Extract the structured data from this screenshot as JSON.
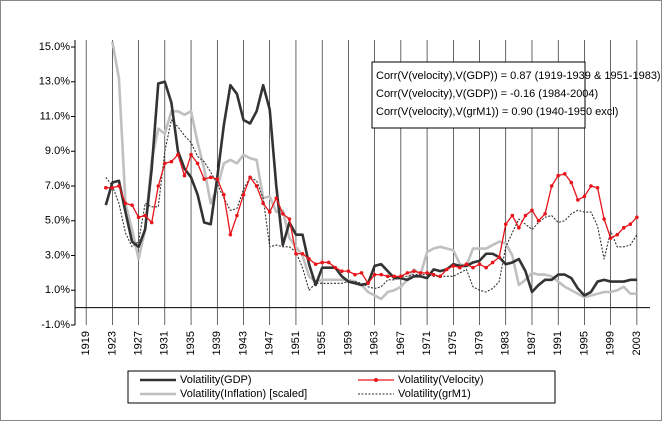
{
  "chart_data": {
    "type": "line",
    "annotations": [
      "Corr(V(velocity),V(GDP)) = 0.87 (1919-1939 & 1951-1983)",
      "Corr(V(velocity),V(GDP)) = -0.16 (1984-2004)",
      "Corr(V(velocity),V(grM1)) = 0.90 (1940-1950 excl)"
    ],
    "x": [
      1922,
      1923,
      1924,
      1925,
      1926,
      1927,
      1928,
      1929,
      1930,
      1931,
      1932,
      1933,
      1934,
      1935,
      1936,
      1937,
      1938,
      1939,
      1940,
      1941,
      1942,
      1943,
      1944,
      1945,
      1946,
      1947,
      1948,
      1949,
      1950,
      1951,
      1952,
      1953,
      1954,
      1955,
      1956,
      1957,
      1958,
      1959,
      1960,
      1961,
      1962,
      1963,
      1964,
      1965,
      1966,
      1967,
      1968,
      1969,
      1970,
      1971,
      1972,
      1973,
      1974,
      1975,
      1976,
      1977,
      1978,
      1979,
      1980,
      1981,
      1982,
      1983,
      1984,
      1985,
      1986,
      1987,
      1988,
      1989,
      1990,
      1991,
      1992,
      1993,
      1994,
      1995,
      1996,
      1997,
      1998,
      1999,
      2000,
      2001,
      2002,
      2003
    ],
    "series": [
      {
        "name": "Volatility(GDP)",
        "color": "#333333",
        "style": "thick",
        "values": [
          5.9,
          7.2,
          7.3,
          5.5,
          3.8,
          3.5,
          4.5,
          8,
          12.9,
          13,
          11.8,
          9,
          8,
          7.5,
          6.5,
          4.9,
          4.8,
          7.5,
          10.5,
          12.8,
          12.3,
          10.8,
          10.6,
          11.3,
          12.8,
          11.4,
          7,
          3.6,
          4.9,
          4.2,
          4.2,
          2.5,
          1.3,
          2.3,
          2.3,
          2.3,
          1.8,
          1.5,
          1.4,
          1.3,
          1.4,
          2.4,
          2.5,
          2.1,
          1.7,
          1.7,
          1.6,
          1.8,
          1.8,
          1.7,
          2.2,
          2.1,
          2.2,
          2.5,
          2.4,
          2.4,
          2.6,
          2.7,
          3.1,
          3.1,
          2.9,
          2.5,
          2.6,
          2.8,
          2.1,
          0.9,
          1.3,
          1.6,
          1.6,
          1.9,
          1.9,
          1.7,
          1.1,
          0.7,
          0.9,
          1.5,
          1.6,
          1.5,
          1.5,
          1.5,
          1.6,
          1.6
        ]
      },
      {
        "name": "Volatility(Velocity)",
        "color": "#e8141a",
        "style": "marker",
        "values": [
          6.9,
          6.9,
          7,
          6,
          5.9,
          5.2,
          5.3,
          4.9,
          7,
          8.3,
          8.4,
          8.8,
          7.6,
          8.8,
          8.3,
          7.4,
          7.5,
          7.4,
          6.5,
          4.2,
          5.3,
          6.5,
          7.5,
          7,
          6,
          5.5,
          6.3,
          5.4,
          5.1,
          3.1,
          3.1,
          2.8,
          2.5,
          2.6,
          2.6,
          2.3,
          2.1,
          2.1,
          1.9,
          2,
          1.4,
          1.9,
          1.9,
          1.8,
          1.8,
          1.8,
          2,
          2.1,
          2,
          2,
          1.9,
          1.8,
          2.2,
          2.4,
          2.3,
          2.5,
          2.3,
          2.5,
          2.3,
          2.6,
          2.9,
          4.8,
          5.3,
          4.6,
          5.3,
          5.6,
          5,
          5.4,
          7,
          7.6,
          7.7,
          7.2,
          6.2,
          6.4,
          7,
          6.9,
          5.1,
          4,
          4.2,
          4.6,
          4.8,
          5.2
        ]
      },
      {
        "name": "Volatility(Inflation) [scaled]",
        "color": "#c0c0c0",
        "style": "thick",
        "values": [
          null,
          15.3,
          13.2,
          6,
          4.5,
          2.8,
          4.5,
          8.5,
          10.3,
          10,
          11.3,
          11.3,
          11.1,
          11.3,
          9.5,
          8,
          6,
          6.9,
          8.3,
          8.5,
          8.3,
          8.8,
          8.6,
          8.5,
          6.3,
          6.4,
          5.5,
          5.6,
          4,
          3.5,
          3,
          1.8,
          1.5,
          1.6,
          1.6,
          1.6,
          1.6,
          1.6,
          1.5,
          1.3,
          0.9,
          0.7,
          0.5,
          0.9,
          1,
          1.2,
          1.6,
          2.2,
          1.9,
          3.2,
          3.4,
          3.5,
          3.4,
          3.3,
          2.5,
          2.4,
          3.4,
          3.4,
          3.4,
          3.6,
          3.8,
          3.7,
          3,
          1.3,
          1.6,
          2,
          1.9,
          1.9,
          1.8,
          1.5,
          1.2,
          1,
          0.8,
          0.6,
          0.7,
          0.8,
          0.9,
          0.9,
          1,
          1.2,
          0.8,
          0.8
        ]
      },
      {
        "name": "Volatility(grM1)",
        "color": "#333333",
        "style": "dashed",
        "values": [
          7.5,
          7,
          6,
          4.3,
          3.5,
          3.8,
          6,
          5.8,
          5.8,
          9,
          10.8,
          10.4,
          9.9,
          9.5,
          8.7,
          8.4,
          7.8,
          7.1,
          6.3,
          5.6,
          5.7,
          6.8,
          7.5,
          7.3,
          6.3,
          3.5,
          3.6,
          3.5,
          3.5,
          3.2,
          2.3,
          1,
          1.4,
          1.4,
          1.4,
          1.4,
          1.4,
          1.5,
          1.5,
          1.4,
          1.2,
          1.1,
          1.2,
          1.6,
          1.6,
          1.8,
          1.8,
          1.9,
          1.9,
          1.9,
          1.8,
          1.8,
          1.8,
          1.8,
          2,
          2.2,
          1.2,
          1,
          0.9,
          1.1,
          1.5,
          3.5,
          4.3,
          5.1,
          4.8,
          4.5,
          4.9,
          5.2,
          5.3,
          4.9,
          5,
          5.4,
          5.6,
          5.5,
          5.5,
          4.7,
          2.8,
          4.4,
          3.5,
          3.5,
          3.6,
          4.2
        ]
      }
    ],
    "xlim": [
      1917.3,
      2005
    ],
    "xticks": [
      1919,
      1923,
      1927,
      1931,
      1935,
      1939,
      1943,
      1947,
      1951,
      1955,
      1959,
      1963,
      1967,
      1971,
      1975,
      1979,
      1983,
      1987,
      1991,
      1995,
      1999,
      2003
    ],
    "ylim": [
      -1,
      15
    ],
    "yticks": [
      {
        "value": -1,
        "label": "-1.0%"
      },
      {
        "value": 1,
        "label": "1.0%"
      },
      {
        "value": 3,
        "label": "3.0%"
      },
      {
        "value": 5,
        "label": "5.0%"
      },
      {
        "value": 7,
        "label": "7.0%"
      },
      {
        "value": 9,
        "label": "9.0%"
      },
      {
        "value": 11,
        "label": "11.0%"
      },
      {
        "value": 13,
        "label": "13.0%"
      },
      {
        "value": 15,
        "label": "15.0%"
      }
    ],
    "grid": "x"
  }
}
